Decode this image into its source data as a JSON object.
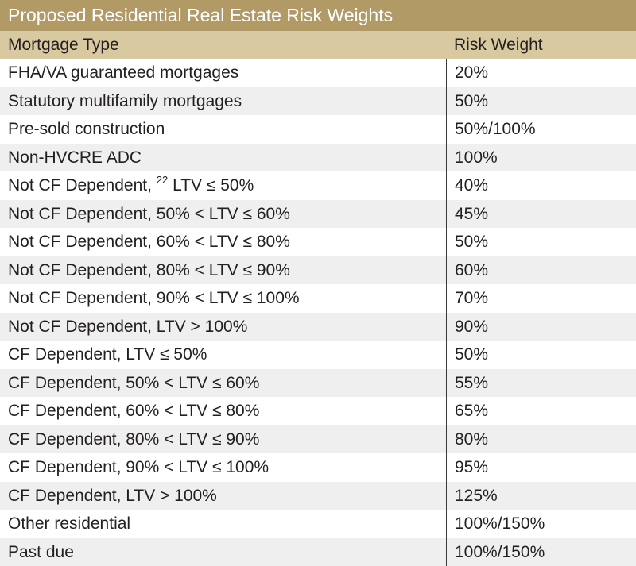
{
  "table": {
    "title": "Proposed Residential Real Estate Risk Weights",
    "headers": {
      "type": "Mortgage Type",
      "weight": "Risk Weight"
    },
    "rows": [
      {
        "type": "FHA/VA guaranteed mortgages",
        "weight": "20%"
      },
      {
        "type": "Statutory multifamily mortgages",
        "weight": "50%"
      },
      {
        "type": "Pre-sold construction",
        "weight": "50%/100%"
      },
      {
        "type": "Non-HVCRE ADC",
        "weight": "100%"
      },
      {
        "type": "Not CF Dependent,",
        "footnote": "22",
        "type_suffix": "LTV ≤ 50%",
        "weight": "40%"
      },
      {
        "type": "Not CF Dependent, 50% < LTV ≤ 60%",
        "weight": "45%"
      },
      {
        "type": "Not CF Dependent, 60% < LTV ≤ 80%",
        "weight": "50%"
      },
      {
        "type": "Not CF Dependent, 80% < LTV ≤ 90%",
        "weight": "60%"
      },
      {
        "type": "Not CF Dependent, 90% < LTV ≤ 100%",
        "weight": "70%"
      },
      {
        "type": "Not CF Dependent, LTV > 100%",
        "weight": "90%"
      },
      {
        "type": "CF Dependent, LTV ≤ 50%",
        "weight": "50%"
      },
      {
        "type": "CF Dependent, 50% < LTV ≤ 60%",
        "weight": "55%"
      },
      {
        "type": "CF Dependent, 60% < LTV ≤ 80%",
        "weight": "65%"
      },
      {
        "type": "CF Dependent, 80% < LTV ≤ 90%",
        "weight": "80%"
      },
      {
        "type": "CF Dependent, 90% < LTV ≤ 100%",
        "weight": "95%"
      },
      {
        "type": "CF Dependent, LTV > 100%",
        "weight": "125%"
      },
      {
        "type": "Other residential",
        "weight": "100%/150%"
      },
      {
        "type": "Past due",
        "weight": "100%/150%"
      }
    ]
  }
}
